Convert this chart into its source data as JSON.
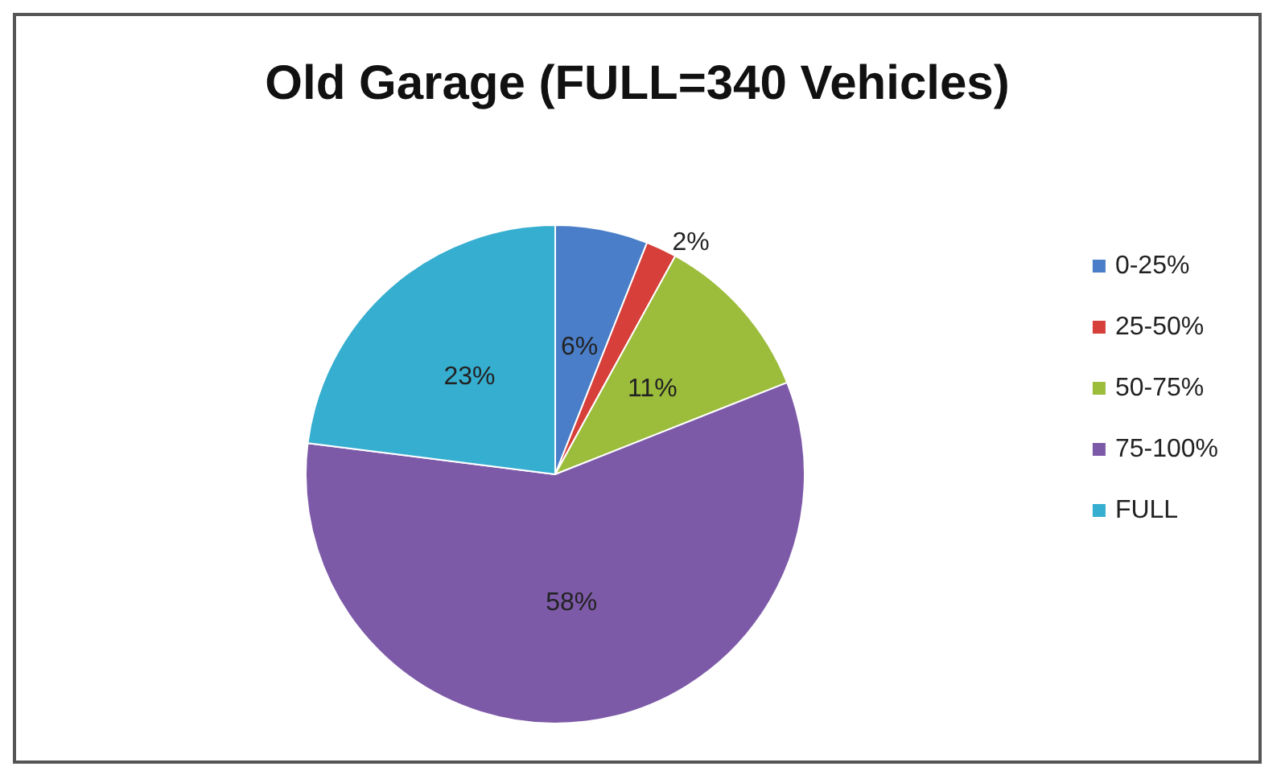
{
  "chart_data": {
    "type": "pie",
    "title": "Old Garage (FULL=340 Vehicles)",
    "categories": [
      "0-25%",
      "25-50%",
      "50-75%",
      "75-100%",
      "FULL"
    ],
    "values": [
      6,
      2,
      11,
      58,
      23
    ],
    "value_labels": [
      "6%",
      "2%",
      "11%",
      "58%",
      "23%"
    ],
    "colors": [
      "#4a7ec8",
      "#d63f3a",
      "#9cbc3c",
      "#7d5aa8",
      "#36aed0"
    ],
    "legend": "right"
  }
}
